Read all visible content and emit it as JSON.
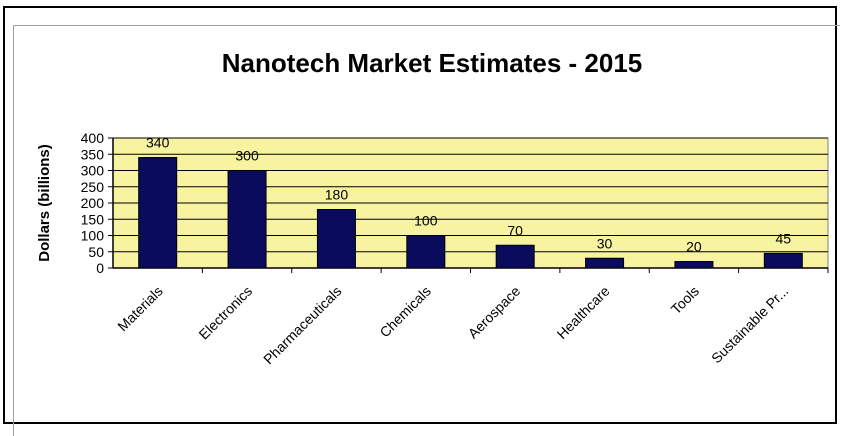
{
  "chart_data": {
    "type": "bar",
    "title": "Nanotech Market Estimates - 2015",
    "xlabel": "",
    "ylabel": "Dollars (billions)",
    "categories": [
      "Materials",
      "Electronics",
      "Pharmaceuticals",
      "Chemicals",
      "Aerospace",
      "Healthcare",
      "Tools",
      "Sustainable Pr..."
    ],
    "values": [
      340,
      300,
      180,
      100,
      70,
      30,
      20,
      45
    ],
    "ylim": [
      0,
      400
    ],
    "yticks": [
      0,
      50,
      100,
      150,
      200,
      250,
      300,
      350,
      400
    ],
    "grid": true,
    "legend": "none",
    "colors": {
      "bar": "#0b0b5e",
      "plot_background": "#f7f3a0",
      "gridline": "#000000"
    }
  }
}
